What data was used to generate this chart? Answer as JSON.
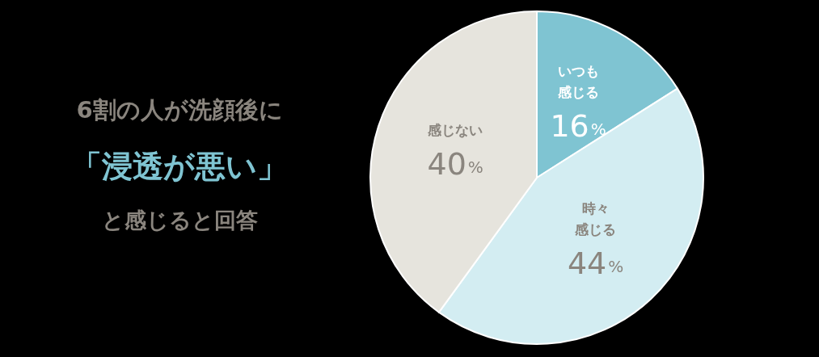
{
  "chart_data": {
    "type": "pie",
    "title": "6割の人が洗顔後に",
    "subtitle": "「浸透が悪い」",
    "annotations": [
      "と感じると回答"
    ],
    "categories": [
      "いつも感じる",
      "時々感じる",
      "感じない"
    ],
    "values": [
      16,
      44,
      40
    ],
    "colors": [
      "#7fc4d2",
      "#d3edf2",
      "#e6e4dd"
    ],
    "value_labels": [
      "16%",
      "44%",
      "40%"
    ]
  }
}
